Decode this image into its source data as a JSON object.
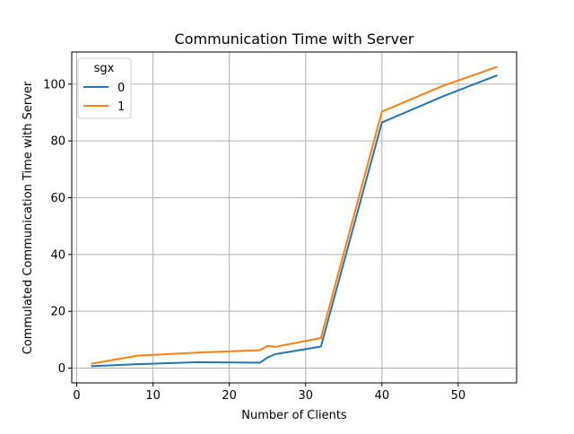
{
  "chart_data": {
    "type": "line",
    "title": "Communication Time with Server",
    "xlabel": "Number of Clients",
    "ylabel": "Commulated Communication Time with Server",
    "xlim": [
      -0.65,
      57.65
    ],
    "ylim": [
      -5.2,
      111.3
    ],
    "x_ticks": [
      0,
      10,
      20,
      30,
      40,
      50
    ],
    "y_ticks": [
      0,
      20,
      40,
      60,
      80,
      100
    ],
    "grid": true,
    "legend": {
      "title": "sgx",
      "placement": "top-left"
    },
    "series": [
      {
        "name": "0",
        "color": "#1f77b4",
        "x": [
          2,
          8,
          16,
          24,
          25,
          26,
          32,
          40,
          48,
          55
        ],
        "y": [
          0.7,
          1.4,
          2.1,
          1.9,
          3.7,
          4.9,
          7.6,
          86.5,
          95.7,
          103.0
        ]
      },
      {
        "name": "1",
        "color": "#ff7f0e",
        "x": [
          2,
          8,
          16,
          24,
          25,
          26,
          32,
          40,
          48,
          55
        ],
        "y": [
          1.6,
          4.4,
          5.5,
          6.3,
          7.8,
          7.5,
          10.6,
          90.3,
          99.4,
          106.0
        ]
      }
    ]
  }
}
